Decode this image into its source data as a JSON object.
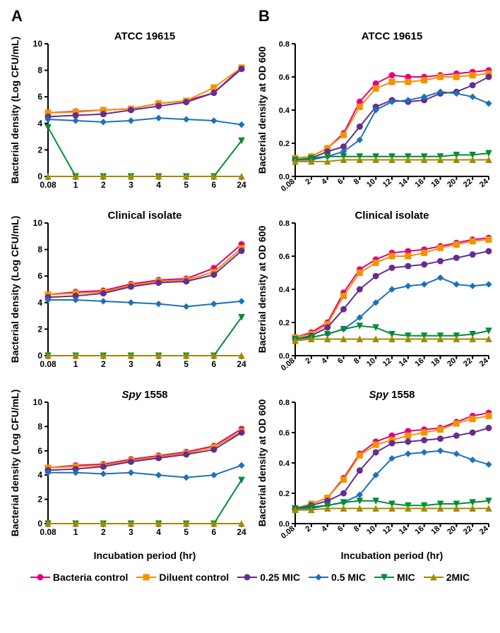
{
  "colors": {
    "bacteria_control": "#e6007e",
    "diluent_control": "#f39200",
    "mic025": "#662d91",
    "mic05": "#1d71b8",
    "mic1": "#008d36",
    "mic2": "#a18b00",
    "axis": "#000000",
    "bg": "#ffffff"
  },
  "legend": [
    {
      "key": "bacteria_control",
      "label": "Bacteria control",
      "marker": "circle"
    },
    {
      "key": "diluent_control",
      "label": "Diluent control",
      "marker": "square"
    },
    {
      "key": "mic025",
      "label": "0.25 MIC",
      "marker": "circle"
    },
    {
      "key": "mic05",
      "label": "0.5 MIC",
      "marker": "diamond"
    },
    {
      "key": "mic1",
      "label": "MIC",
      "marker": "tri_down"
    },
    {
      "key": "mic2",
      "label": "2MIC",
      "marker": "tri_up"
    }
  ],
  "columnA": {
    "letter": "A",
    "xlabel": "Incubation period (hr)",
    "ylabel": "Bacterial density (Log CFU/mL)",
    "xticks": [
      "0.08",
      "1",
      "2",
      "3",
      "4",
      "5",
      "6",
      "24"
    ],
    "ylim": [
      0,
      10
    ],
    "ytick_step": 2,
    "label_fontsize": 14,
    "tick_fontsize": 12,
    "panels": [
      {
        "title": "ATCC 19615",
        "series": {
          "bacteria_control": [
            4.8,
            4.9,
            5.0,
            5.1,
            5.5,
            5.7,
            6.3,
            8.2
          ],
          "diluent_control": [
            4.8,
            4.85,
            5.0,
            5.1,
            5.5,
            5.7,
            6.7,
            8.2
          ],
          "mic025": [
            4.5,
            4.6,
            4.7,
            5.0,
            5.3,
            5.6,
            6.3,
            8.1
          ],
          "mic05": [
            4.3,
            4.2,
            4.1,
            4.2,
            4.4,
            4.3,
            4.2,
            3.9
          ],
          "mic1": [
            3.7,
            0,
            0,
            0,
            0,
            0,
            0,
            2.7
          ],
          "mic2": [
            0,
            0,
            0,
            0,
            0,
            0,
            0,
            0
          ]
        }
      },
      {
        "title": "Clinical isolate",
        "series": {
          "bacteria_control": [
            4.6,
            4.8,
            4.9,
            5.4,
            5.7,
            5.8,
            6.6,
            8.4
          ],
          "diluent_control": [
            4.6,
            4.7,
            4.8,
            5.3,
            5.6,
            5.7,
            6.3,
            8.1
          ],
          "mic025": [
            4.4,
            4.5,
            4.7,
            5.2,
            5.5,
            5.6,
            6.1,
            7.9
          ],
          "mic05": [
            4.2,
            4.2,
            4.1,
            4.0,
            3.9,
            3.7,
            3.9,
            4.1
          ],
          "mic1": [
            0,
            0,
            0,
            0,
            0,
            0,
            0,
            2.9
          ],
          "mic2": [
            0,
            0,
            0,
            0,
            0,
            0,
            0,
            0
          ]
        }
      },
      {
        "title": "Spy 1558",
        "title_italic_prefix": "Spy",
        "series": {
          "bacteria_control": [
            4.6,
            4.8,
            4.9,
            5.3,
            5.6,
            5.9,
            6.4,
            7.8
          ],
          "diluent_control": [
            4.6,
            4.7,
            4.8,
            5.2,
            5.5,
            5.8,
            6.3,
            7.6
          ],
          "mic025": [
            4.4,
            4.5,
            4.7,
            5.1,
            5.4,
            5.7,
            6.1,
            7.5
          ],
          "mic05": [
            4.2,
            4.2,
            4.1,
            4.2,
            4.0,
            3.8,
            4.0,
            4.8
          ],
          "mic1": [
            0,
            0,
            0,
            0,
            0,
            0,
            0,
            3.6
          ],
          "mic2": [
            0,
            0,
            0,
            0,
            0,
            0,
            0,
            0
          ]
        }
      }
    ]
  },
  "columnB": {
    "letter": "B",
    "xlabel": "Incubation period (hr)",
    "ylabel": "Bacterial density at OD 600",
    "xticks": [
      "0.08",
      "2",
      "4",
      "6",
      "8",
      "10",
      "12",
      "14",
      "16",
      "18",
      "20",
      "22",
      "24"
    ],
    "ylim": [
      0,
      0.8
    ],
    "ytick_step": 0.2,
    "label_fontsize": 14,
    "tick_fontsize": 11,
    "panels": [
      {
        "title": "ATCC 19615",
        "series": {
          "bacteria_control": [
            0.11,
            0.12,
            0.17,
            0.26,
            0.45,
            0.56,
            0.61,
            0.6,
            0.6,
            0.61,
            0.62,
            0.63,
            0.64
          ],
          "diluent_control": [
            0.11,
            0.12,
            0.17,
            0.25,
            0.42,
            0.53,
            0.57,
            0.57,
            0.58,
            0.6,
            0.6,
            0.61,
            0.62
          ],
          "mic025": [
            0.1,
            0.11,
            0.15,
            0.18,
            0.3,
            0.42,
            0.46,
            0.45,
            0.46,
            0.5,
            0.51,
            0.55,
            0.6
          ],
          "mic05": [
            0.1,
            0.1,
            0.12,
            0.15,
            0.22,
            0.4,
            0.45,
            0.46,
            0.48,
            0.51,
            0.5,
            0.48,
            0.44
          ],
          "mic1": [
            0.1,
            0.11,
            0.12,
            0.12,
            0.12,
            0.12,
            0.12,
            0.12,
            0.12,
            0.12,
            0.13,
            0.13,
            0.14
          ],
          "mic2": [
            0.09,
            0.09,
            0.09,
            0.1,
            0.1,
            0.1,
            0.1,
            0.1,
            0.1,
            0.1,
            0.1,
            0.1,
            0.1
          ]
        }
      },
      {
        "title": "Clinical isolate",
        "series": {
          "bacteria_control": [
            0.11,
            0.14,
            0.2,
            0.38,
            0.52,
            0.58,
            0.62,
            0.63,
            0.64,
            0.66,
            0.68,
            0.7,
            0.71
          ],
          "diluent_control": [
            0.11,
            0.13,
            0.19,
            0.36,
            0.5,
            0.56,
            0.6,
            0.6,
            0.62,
            0.65,
            0.67,
            0.69,
            0.7
          ],
          "mic025": [
            0.1,
            0.12,
            0.17,
            0.28,
            0.4,
            0.48,
            0.53,
            0.54,
            0.55,
            0.57,
            0.59,
            0.61,
            0.63
          ],
          "mic05": [
            0.1,
            0.11,
            0.13,
            0.16,
            0.23,
            0.32,
            0.4,
            0.42,
            0.43,
            0.47,
            0.43,
            0.42,
            0.43
          ],
          "mic1": [
            0.1,
            0.11,
            0.13,
            0.16,
            0.18,
            0.17,
            0.13,
            0.12,
            0.12,
            0.12,
            0.12,
            0.13,
            0.15
          ],
          "mic2": [
            0.09,
            0.1,
            0.1,
            0.1,
            0.1,
            0.1,
            0.1,
            0.1,
            0.1,
            0.1,
            0.1,
            0.1,
            0.1
          ]
        }
      },
      {
        "title": "Spy 1558",
        "title_italic_prefix": "Spy",
        "series": {
          "bacteria_control": [
            0.1,
            0.13,
            0.17,
            0.3,
            0.46,
            0.54,
            0.58,
            0.61,
            0.62,
            0.63,
            0.67,
            0.71,
            0.73
          ],
          "diluent_control": [
            0.1,
            0.13,
            0.17,
            0.29,
            0.45,
            0.52,
            0.55,
            0.58,
            0.6,
            0.62,
            0.66,
            0.69,
            0.71
          ],
          "mic025": [
            0.1,
            0.12,
            0.15,
            0.2,
            0.35,
            0.47,
            0.53,
            0.54,
            0.55,
            0.56,
            0.58,
            0.6,
            0.63
          ],
          "mic05": [
            0.1,
            0.1,
            0.12,
            0.14,
            0.19,
            0.32,
            0.43,
            0.46,
            0.47,
            0.48,
            0.46,
            0.42,
            0.39
          ],
          "mic1": [
            0.1,
            0.11,
            0.12,
            0.14,
            0.15,
            0.15,
            0.13,
            0.12,
            0.12,
            0.13,
            0.13,
            0.14,
            0.15
          ],
          "mic2": [
            0.09,
            0.09,
            0.1,
            0.1,
            0.1,
            0.1,
            0.1,
            0.1,
            0.1,
            0.1,
            0.1,
            0.1,
            0.1
          ]
        }
      }
    ]
  },
  "marker_size": 4,
  "line_width": 2
}
